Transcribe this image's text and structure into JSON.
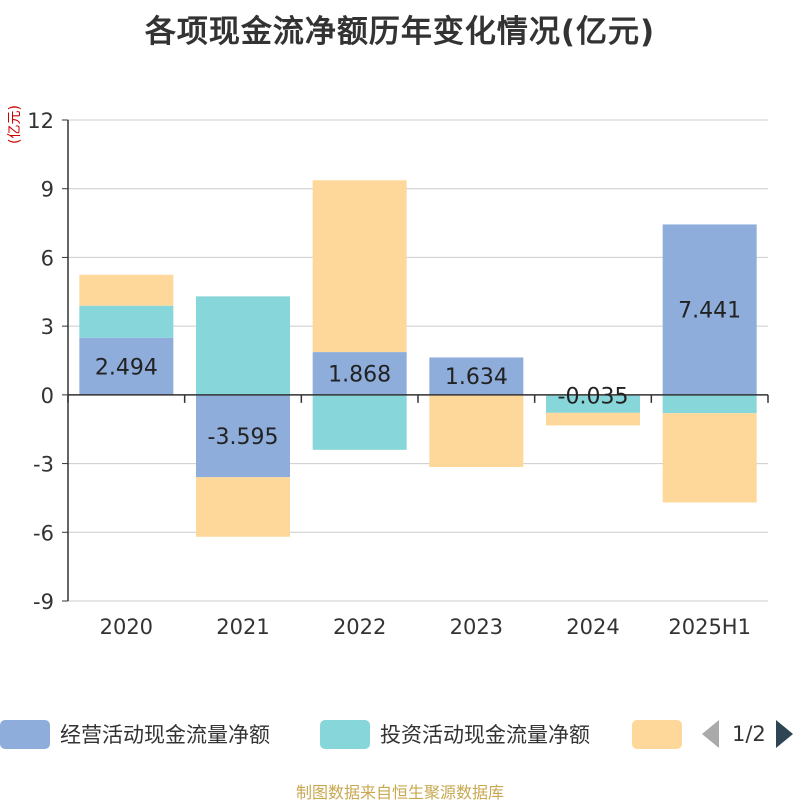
{
  "title": "各项现金流净额历年变化情况(亿元)",
  "unit_label": "(亿元)",
  "source": "制图数据来自恒生聚源数据库",
  "legend": {
    "items": [
      {
        "label": "经营活动现金流量净额",
        "color": "#8eaddb"
      },
      {
        "label": "投资活动现金流量净额",
        "color": "#87d6d9"
      },
      {
        "label": "",
        "color": "#fdd89a"
      }
    ],
    "page_text": "1/2"
  },
  "chart_data": {
    "type": "bar",
    "stacked": true,
    "categories": [
      "2020",
      "2021",
      "2022",
      "2023",
      "2024",
      "2025H1"
    ],
    "ylim": [
      -9,
      12
    ],
    "yticks": [
      12,
      9,
      6,
      3,
      0,
      -3,
      -6,
      -9
    ],
    "grid": true,
    "series": [
      {
        "name": "经营活动现金流量净额",
        "color": "#8eaddb",
        "values": [
          2.494,
          -3.595,
          1.868,
          1.634,
          -0.035,
          7.441
        ],
        "labels": [
          "2.494",
          "-3.595",
          "1.868",
          "1.634",
          "-0.035",
          "7.441"
        ]
      },
      {
        "name": "投资活动现金流量净额",
        "color": "#87d6d9",
        "values": [
          1.4,
          4.3,
          -2.4,
          0.0,
          -0.75,
          -0.8
        ]
      },
      {
        "color": "#fdd89a",
        "values": [
          1.35,
          -2.6,
          7.5,
          -3.15,
          -0.55,
          -3.9
        ]
      }
    ]
  }
}
